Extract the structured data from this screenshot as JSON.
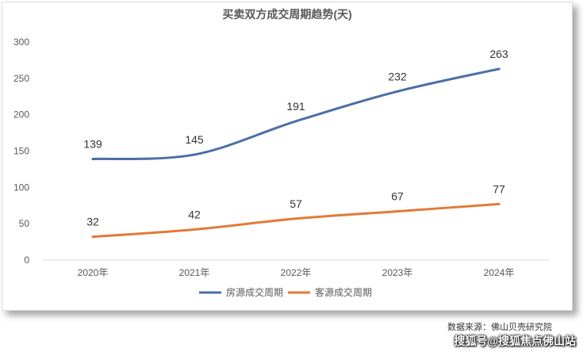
{
  "chart_data": {
    "type": "line",
    "title": "买卖双方成交周期趋势(天)",
    "categories": [
      "2020年",
      "2021年",
      "2022年",
      "2023年",
      "2024年"
    ],
    "ylim": [
      0,
      300
    ],
    "yticks": [
      0,
      50,
      100,
      150,
      200,
      250,
      300
    ],
    "grid": false,
    "legend": "bottom",
    "smooth": true,
    "series": [
      {
        "name": "房源成交周期",
        "color": "#4a6fa5",
        "values": [
          139,
          145,
          191,
          232,
          263
        ]
      },
      {
        "name": "客源成交周期",
        "color": "#e07b39",
        "values": [
          32,
          42,
          57,
          67,
          77
        ]
      }
    ]
  },
  "footer": {
    "source": "数据来源：佛山贝壳研究院",
    "watermark": "搜狐号@搜狐焦点佛山站"
  }
}
